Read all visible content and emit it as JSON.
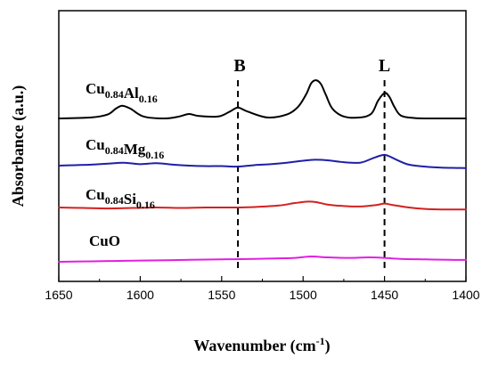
{
  "chart_data": {
    "type": "line",
    "title": "",
    "xlabel": "Wavenumber (cm-1)",
    "xlabel_parts": {
      "main": "Wavenumber (cm",
      "sup": "-1",
      "end": ")"
    },
    "ylabel": "Absorbance (a.u.)",
    "xlim": [
      1650,
      1400
    ],
    "x_reversed": true,
    "x_ticks": [
      1650,
      1600,
      1550,
      1500,
      1450,
      1400
    ],
    "y_tick_labels": false,
    "y_offset_stacked": true,
    "grid": false,
    "legend": "inline labels",
    "markers": [
      {
        "label": "B",
        "x": 1540
      },
      {
        "label": "L",
        "x": 1450
      }
    ],
    "series": [
      {
        "name": "Cu0.84Al0.16",
        "label_parts": [
          {
            "t": "Cu",
            "sub": false
          },
          {
            "t": "0.84",
            "sub": true
          },
          {
            "t": "Al",
            "sub": false
          },
          {
            "t": "0.16",
            "sub": true
          }
        ],
        "color": "#000000",
        "x": [
          1650,
          1630,
          1620,
          1615,
          1611,
          1606,
          1598,
          1585,
          1576,
          1570,
          1564,
          1552,
          1545,
          1540,
          1534,
          1522,
          1510,
          1503,
          1498,
          1495,
          1492,
          1489,
          1486,
          1482,
          1475,
          1465,
          1458,
          1454,
          1450,
          1447,
          1444,
          1440,
          1432,
          1420,
          1400
        ],
        "y": [
          0.0,
          0.1,
          0.4,
          1.0,
          1.3,
          1.0,
          0.2,
          0.0,
          0.2,
          0.45,
          0.25,
          0.2,
          0.7,
          1.1,
          0.7,
          0.1,
          0.4,
          1.2,
          2.5,
          3.6,
          3.9,
          3.5,
          2.4,
          1.0,
          0.2,
          0.1,
          0.5,
          1.8,
          2.6,
          2.2,
          1.2,
          0.3,
          0.05,
          0.0,
          0.0
        ]
      },
      {
        "name": "Cu0.84Mg0.16",
        "label_parts": [
          {
            "t": "Cu",
            "sub": false
          },
          {
            "t": "0.84",
            "sub": true
          },
          {
            "t": "Mg",
            "sub": false
          },
          {
            "t": "0.16",
            "sub": true
          }
        ],
        "color": "#1f1fa8",
        "x": [
          1650,
          1640,
          1630,
          1620,
          1610,
          1600,
          1590,
          1580,
          1570,
          1560,
          1550,
          1540,
          1530,
          1520,
          1510,
          1500,
          1493,
          1485,
          1475,
          1465,
          1458,
          1453,
          1450,
          1447,
          1442,
          1435,
          1425,
          1415,
          1400
        ],
        "y": [
          0.0,
          0.05,
          0.1,
          0.2,
          0.3,
          0.15,
          0.25,
          0.1,
          0.0,
          -0.05,
          -0.05,
          -0.1,
          0.05,
          0.15,
          0.3,
          0.5,
          0.6,
          0.55,
          0.35,
          0.3,
          0.7,
          1.0,
          1.1,
          0.95,
          0.55,
          0.1,
          -0.1,
          -0.2,
          -0.25
        ]
      },
      {
        "name": "Cu0.84Si0.16",
        "label_parts": [
          {
            "t": "Cu",
            "sub": false
          },
          {
            "t": "0.84",
            "sub": true
          },
          {
            "t": "Si",
            "sub": false
          },
          {
            "t": "0.16",
            "sub": true
          }
        ],
        "color": "#d42020",
        "x": [
          1650,
          1635,
          1620,
          1605,
          1590,
          1575,
          1560,
          1545,
          1530,
          1515,
          1505,
          1497,
          1492,
          1485,
          1475,
          1465,
          1455,
          1450,
          1445,
          1435,
          1425,
          1415,
          1400
        ],
        "y": [
          0.0,
          -0.05,
          -0.1,
          -0.05,
          0.0,
          -0.05,
          0.0,
          0.0,
          0.05,
          0.2,
          0.45,
          0.6,
          0.55,
          0.3,
          0.15,
          0.1,
          0.25,
          0.4,
          0.25,
          0.0,
          -0.15,
          -0.2,
          -0.2
        ]
      },
      {
        "name": "CuO",
        "label_parts": [
          {
            "t": "CuO",
            "sub": false
          }
        ],
        "color": "#e020e0",
        "x": [
          1650,
          1630,
          1610,
          1590,
          1570,
          1550,
          1530,
          1515,
          1505,
          1495,
          1485,
          1470,
          1460,
          1450,
          1440,
          1425,
          1410,
          1400
        ],
        "y": [
          0.0,
          0.05,
          0.1,
          0.15,
          0.2,
          0.25,
          0.3,
          0.35,
          0.4,
          0.55,
          0.45,
          0.4,
          0.45,
          0.4,
          0.3,
          0.25,
          0.2,
          0.2
        ]
      }
    ]
  }
}
